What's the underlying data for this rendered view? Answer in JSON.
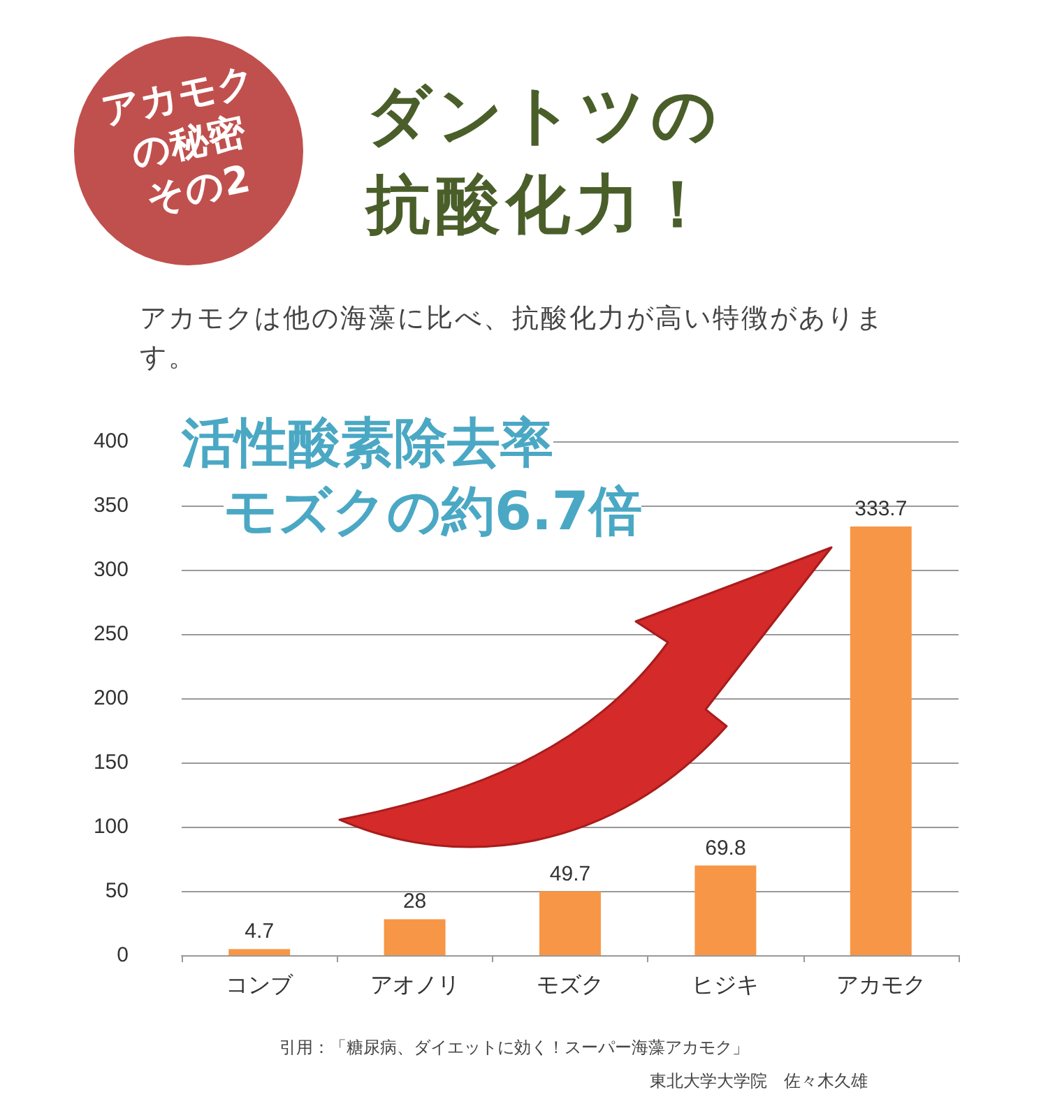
{
  "chart_data": {
    "type": "bar",
    "title": "ダントツの抗酸化力！",
    "subtitle": "アカモクは他の海藻に比べ、抗酸化力が高い特徴があります。",
    "categories": [
      "コンブ",
      "アオノリ",
      "モズク",
      "ヒジキ",
      "アカモク"
    ],
    "values": [
      4.7,
      28,
      49.7,
      69.8,
      333.7
    ],
    "color": "#f79646",
    "ylim": [
      0,
      400
    ],
    "yticks": [
      0,
      50,
      100,
      150,
      200,
      250,
      300,
      350,
      400
    ],
    "grid": "y",
    "data_labels": true,
    "annotations": [
      "アカモク",
      "の秘密",
      "その2",
      "活性酸素除去率",
      "モズクの約6.7倍",
      "引用：「糖尿病、ダイエットに効く！スーパー海藻アカモク」",
      "東北大学大学院　佐々木久雄"
    ]
  }
}
